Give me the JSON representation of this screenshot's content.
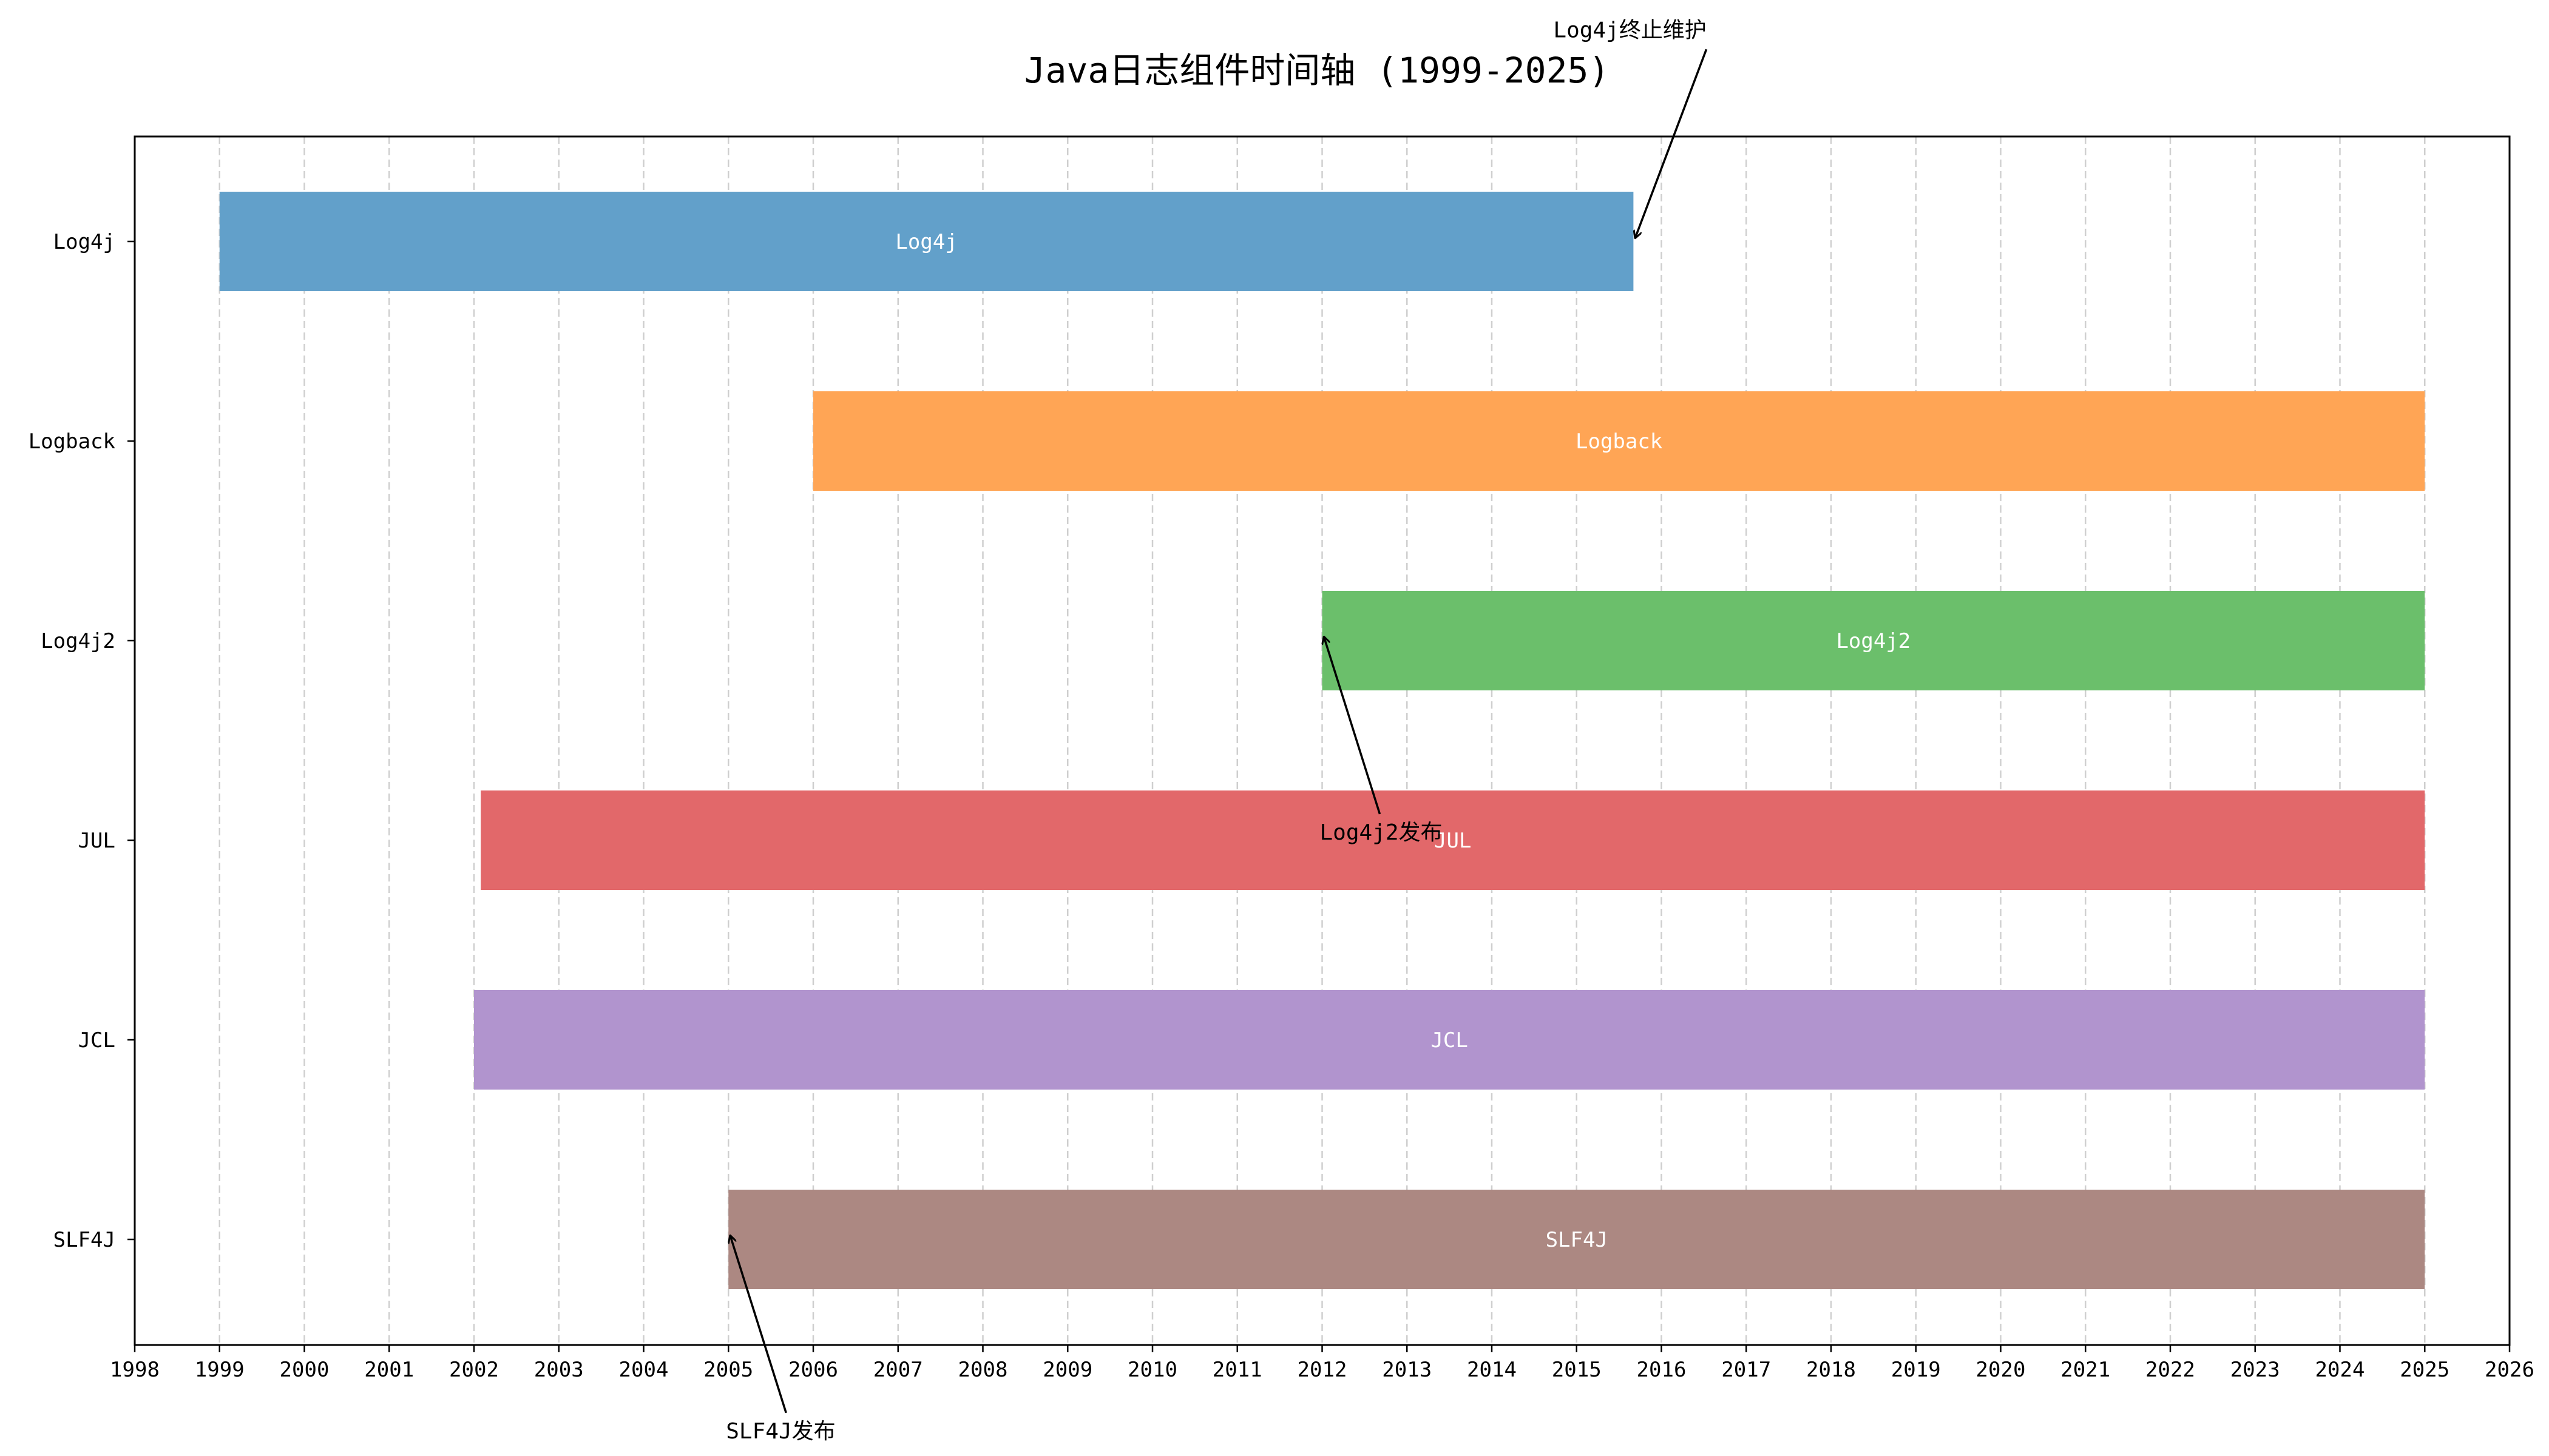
{
  "chart_data": {
    "type": "bar",
    "orientation": "horizontal",
    "title": "Java日志组件时间轴 (1999-2025)",
    "xlabel": "",
    "ylabel": "",
    "xlim": [
      1998,
      2026
    ],
    "xticks": [
      1998,
      1999,
      2000,
      2001,
      2002,
      2003,
      2004,
      2005,
      2006,
      2007,
      2008,
      2009,
      2010,
      2011,
      2012,
      2013,
      2014,
      2015,
      2016,
      2017,
      2018,
      2019,
      2020,
      2021,
      2022,
      2023,
      2024,
      2025,
      2026
    ],
    "grid": "vertical dashed",
    "legend": "none",
    "bars": [
      {
        "category": "Log4j",
        "label": "Log4j",
        "start": 1999.0,
        "end": 2015.67,
        "color": "#62a0ca"
      },
      {
        "category": "Logback",
        "label": "Logback",
        "start": 2006.0,
        "end": 2025.0,
        "color": "#ffa555"
      },
      {
        "category": "Log4j2",
        "label": "Log4j2",
        "start": 2012.0,
        "end": 2025.0,
        "color": "#6bbf6b"
      },
      {
        "category": "JUL",
        "label": "JUL",
        "start": 2002.08,
        "end": 2025.0,
        "color": "#e2686a"
      },
      {
        "category": "JCL",
        "label": "JCL",
        "start": 2002.0,
        "end": 2025.0,
        "color": "#b194ce"
      },
      {
        "category": "SLF4J",
        "label": "SLF4J",
        "start": 2005.0,
        "end": 2025.0,
        "color": "#ac8882"
      }
    ],
    "annotations": [
      {
        "text": "Log4j终止维护",
        "point_x": 2015.67,
        "point_row": 0,
        "text_x": 2015.6,
        "text_row": -1.06
      },
      {
        "text": "Log4j2发布",
        "point_x": 2012.0,
        "point_row": 2,
        "text_x": 2012.0,
        "text_row": 2.96
      },
      {
        "text": "SLF4J发布",
        "point_x": 2005.0,
        "point_row": 5,
        "text_x": 2005.0,
        "text_row": 5.96
      }
    ]
  }
}
